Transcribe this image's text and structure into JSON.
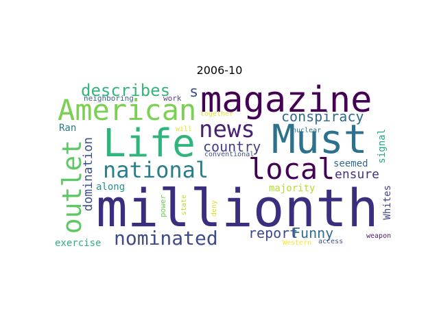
{
  "title": "2006-10",
  "words": [
    {
      "text": "millionth",
      "color": "#3b2e7e"
    },
    {
      "text": "magazine",
      "color": "#440154"
    },
    {
      "text": "Life",
      "color": "#2fb47c"
    },
    {
      "text": "Must",
      "color": "#2c718e"
    },
    {
      "text": "American",
      "color": "#7ad151"
    },
    {
      "text": "news",
      "color": "#482173"
    },
    {
      "text": "outlet",
      "color": "#5ec962"
    },
    {
      "text": "national",
      "color": "#287d8e"
    },
    {
      "text": "local",
      "color": "#440154"
    },
    {
      "text": "nominated",
      "color": "#3e4a89"
    },
    {
      "text": "describes",
      "color": "#35b779"
    },
    {
      "text": "conspiracy",
      "color": "#31688e"
    },
    {
      "text": "country",
      "color": "#433e85"
    },
    {
      "text": "report",
      "color": "#3e4989"
    },
    {
      "text": "Funny",
      "color": "#2e6e8e"
    },
    {
      "text": "domination",
      "color": "#3b528b"
    },
    {
      "text": "ensure",
      "color": "#46327e"
    },
    {
      "text": "seemed",
      "color": "#31688e"
    },
    {
      "text": "signal",
      "color": "#22a884"
    },
    {
      "text": "majority",
      "color": "#b5de2b"
    },
    {
      "text": "Whites",
      "color": "#414487"
    },
    {
      "text": "along",
      "color": "#21918c"
    },
    {
      "text": "exercise",
      "color": "#29af7f"
    },
    {
      "text": "Ran",
      "color": "#2a788e"
    },
    {
      "text": "s",
      "color": "#3b528b"
    },
    {
      "text": "work",
      "color": "#5c3c8c"
    },
    {
      "text": "neighboring",
      "color": "#31688e"
    },
    {
      "text": "together",
      "color": "#e0e33b"
    },
    {
      "text": "will",
      "color": "#e5e419"
    },
    {
      "text": "nuclear",
      "color": "#2c728e"
    },
    {
      "text": "conventional",
      "color": "#3b528b"
    },
    {
      "text": "state",
      "color": "#b8de29"
    },
    {
      "text": "power",
      "color": "#6ccd5a"
    },
    {
      "text": "deny",
      "color": "#d8e219"
    },
    {
      "text": "access",
      "color": "#3b528b"
    },
    {
      "text": "Western",
      "color": "#fde725"
    },
    {
      "text": "weapon",
      "color": "#481b6d"
    }
  ]
}
